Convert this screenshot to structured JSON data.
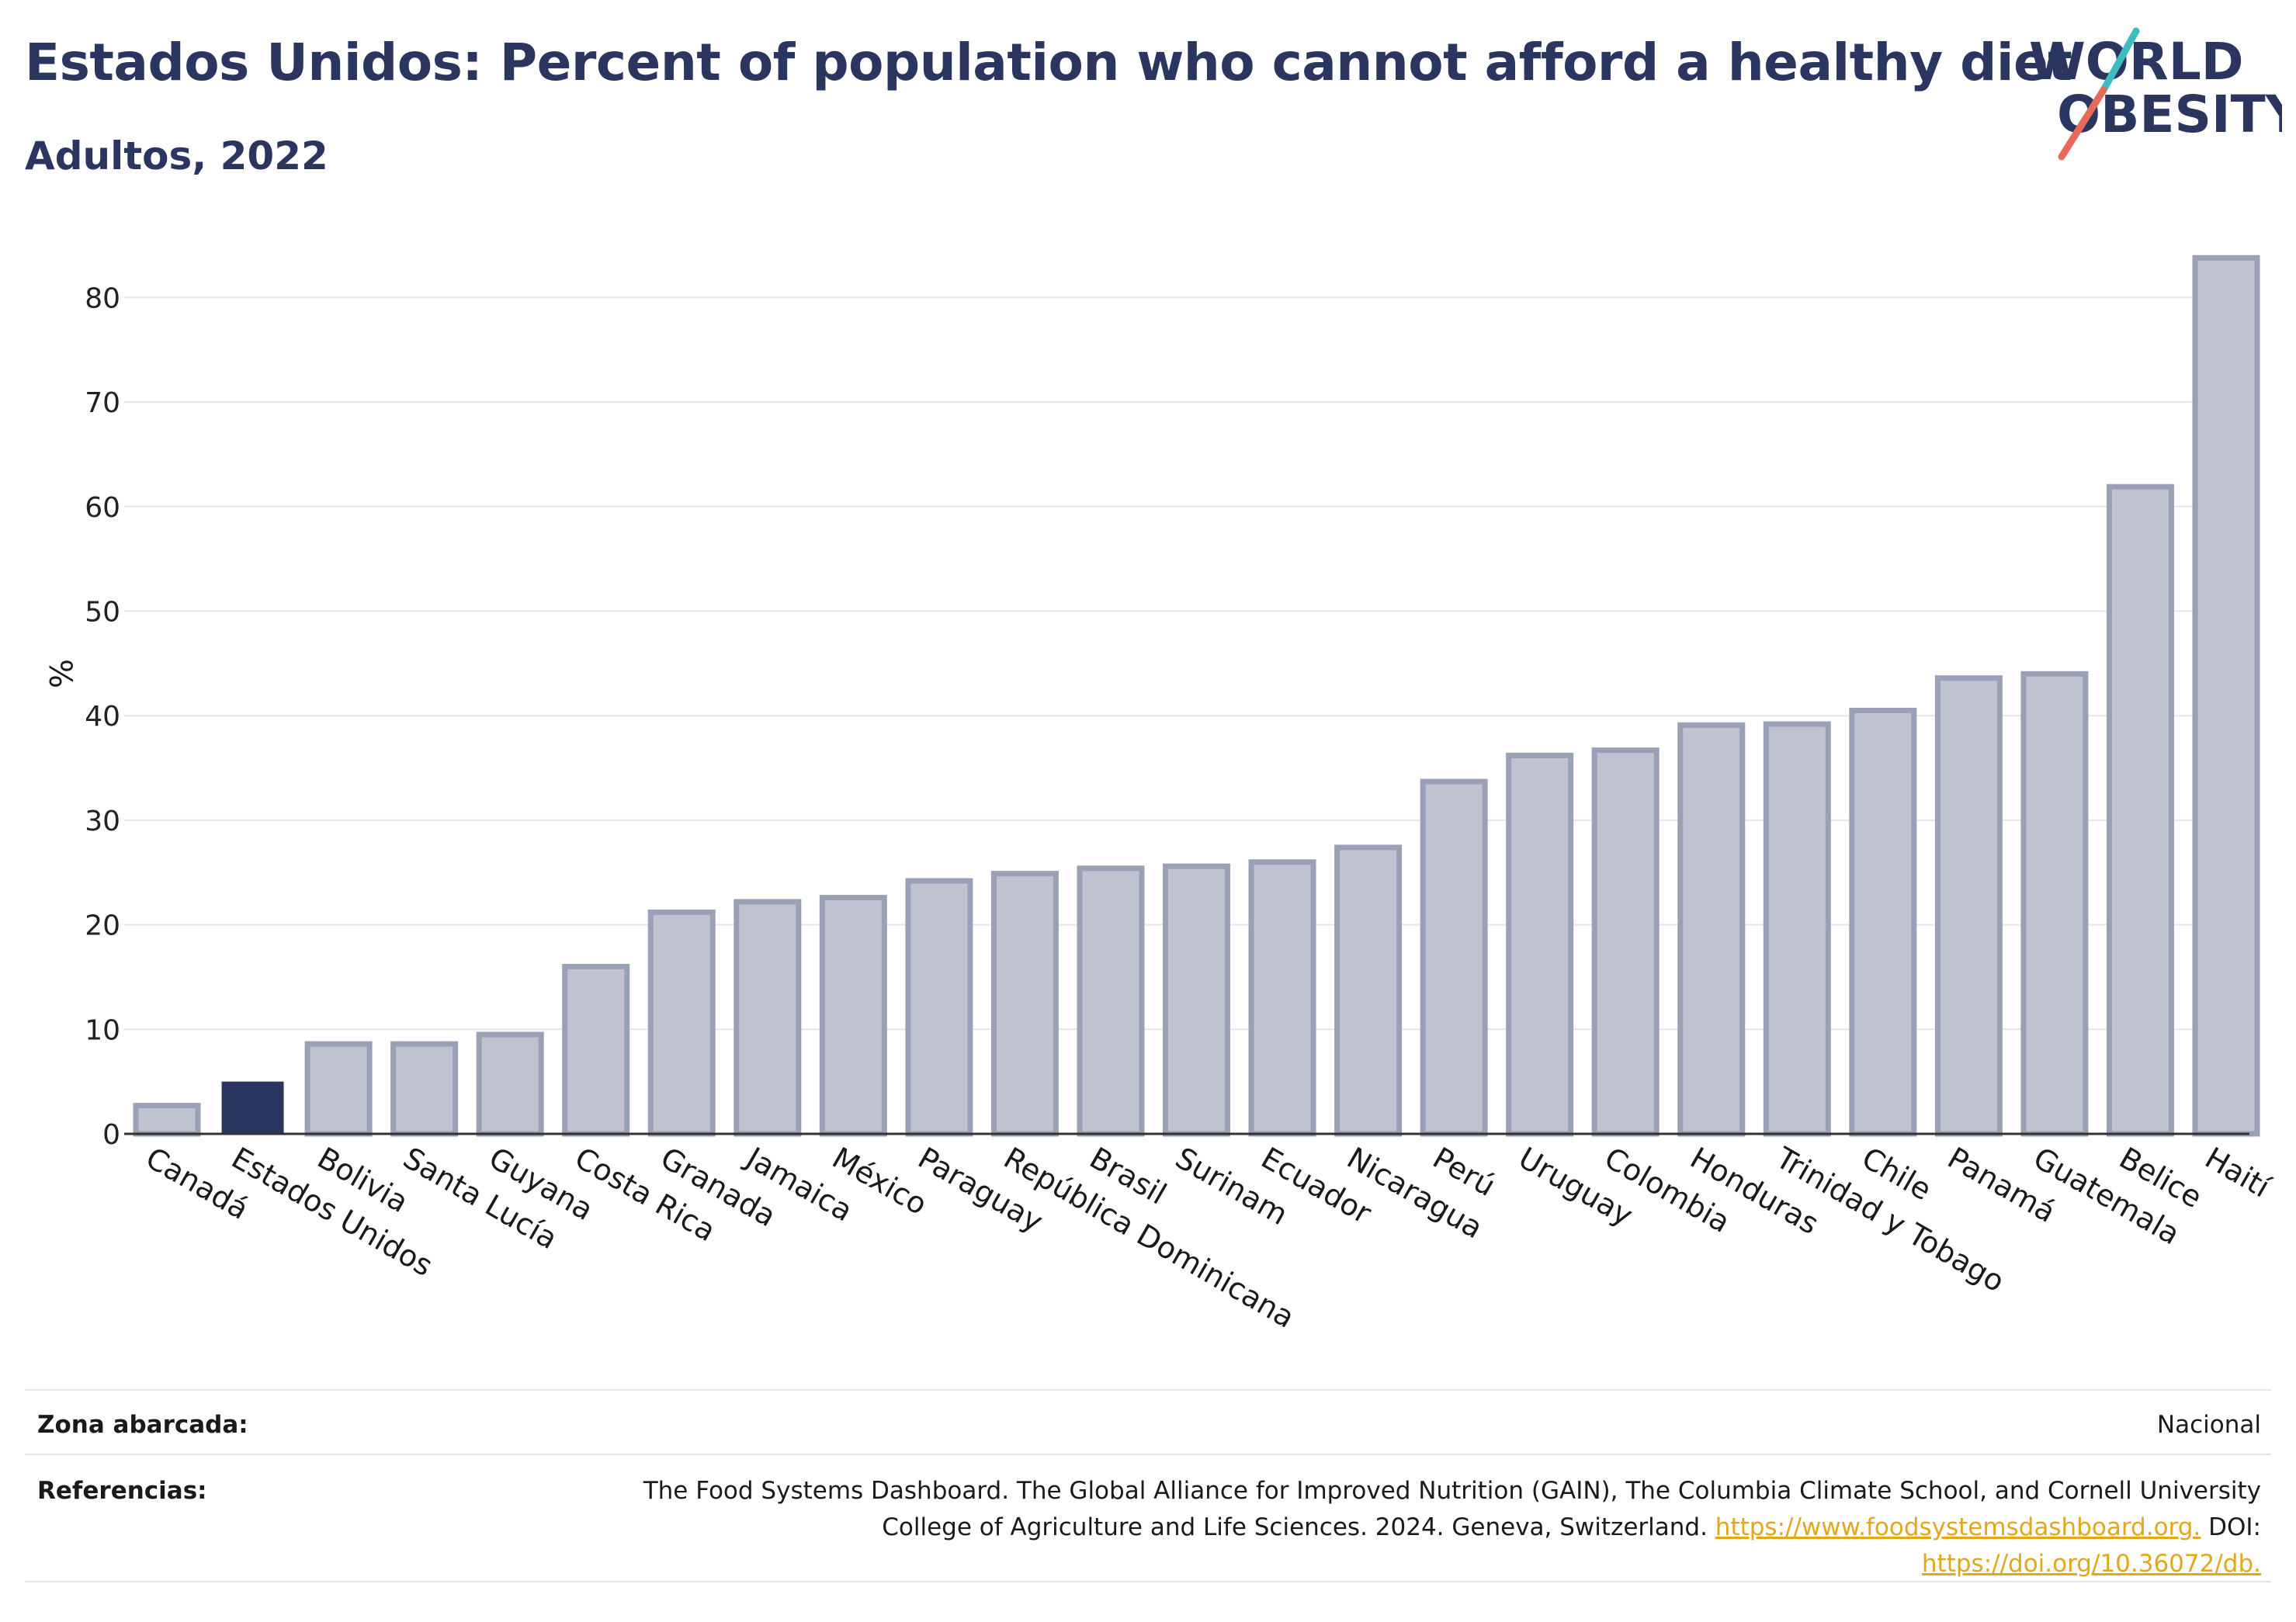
{
  "header": {
    "title": "Estados Unidos: Percent of population who cannot afford a healthy diet",
    "subtitle": "Adultos, 2022"
  },
  "logo": {
    "line1": "WORLD",
    "line2": "OBESITY",
    "colors": {
      "text": "#2a3560",
      "slash_top": "#3fbcc0",
      "slash_bottom": "#e56a5a"
    }
  },
  "colors": {
    "highlight_bar": "#2a3560",
    "bar_fill": "#bfc2cf",
    "bar_stroke": "#9aa0b6",
    "grid": "#e5e5e8",
    "axis": "#333333"
  },
  "chart_data": {
    "type": "bar",
    "title": "Estados Unidos: Percent of population who cannot afford a healthy diet",
    "subtitle": "Adultos, 2022",
    "xlabel": "",
    "ylabel": "%",
    "ylim": [
      0,
      85
    ],
    "yticks": [
      0,
      10,
      20,
      30,
      40,
      50,
      60,
      70,
      80
    ],
    "grid": true,
    "highlight": "Estados Unidos",
    "categories": [
      "Canadá",
      "Estados Unidos",
      "Bolivia",
      "Santa Lucía",
      "Guyana",
      "Costa Rica",
      "Granada",
      "Jamaica",
      "México",
      "Paraguay",
      "República Dominicana",
      "Brasil",
      "Surinam",
      "Ecuador",
      "Nicaragua",
      "Perú",
      "Uruguay",
      "Colombia",
      "Honduras",
      "Trinidad y Tobago",
      "Chile",
      "Panamá",
      "Guatemala",
      "Belice",
      "Haití"
    ],
    "values": [
      2.7,
      5.0,
      8.6,
      8.6,
      9.5,
      16.0,
      21.2,
      22.2,
      22.6,
      24.2,
      24.9,
      25.4,
      25.6,
      26.0,
      27.4,
      33.7,
      36.2,
      36.7,
      39.1,
      39.2,
      40.5,
      43.6,
      44.0,
      61.9,
      83.8
    ]
  },
  "footer": {
    "zone_label": "Zona abarcada:",
    "zone_value": "Nacional",
    "references_label": "Referencias:",
    "references_line1": "The Food Systems Dashboard. The Global Alliance for Improved Nutrition (GAIN), The Columbia Climate School, and Cornell University",
    "references_line2_text": "College of Agriculture and Life Sciences. 2024. Geneva, Switzerland.",
    "references_link1": "https://www.foodsystemsdashboard.org.",
    "references_doi_label": "DOI:",
    "references_link2": "https://doi.org/10.36072/db."
  }
}
